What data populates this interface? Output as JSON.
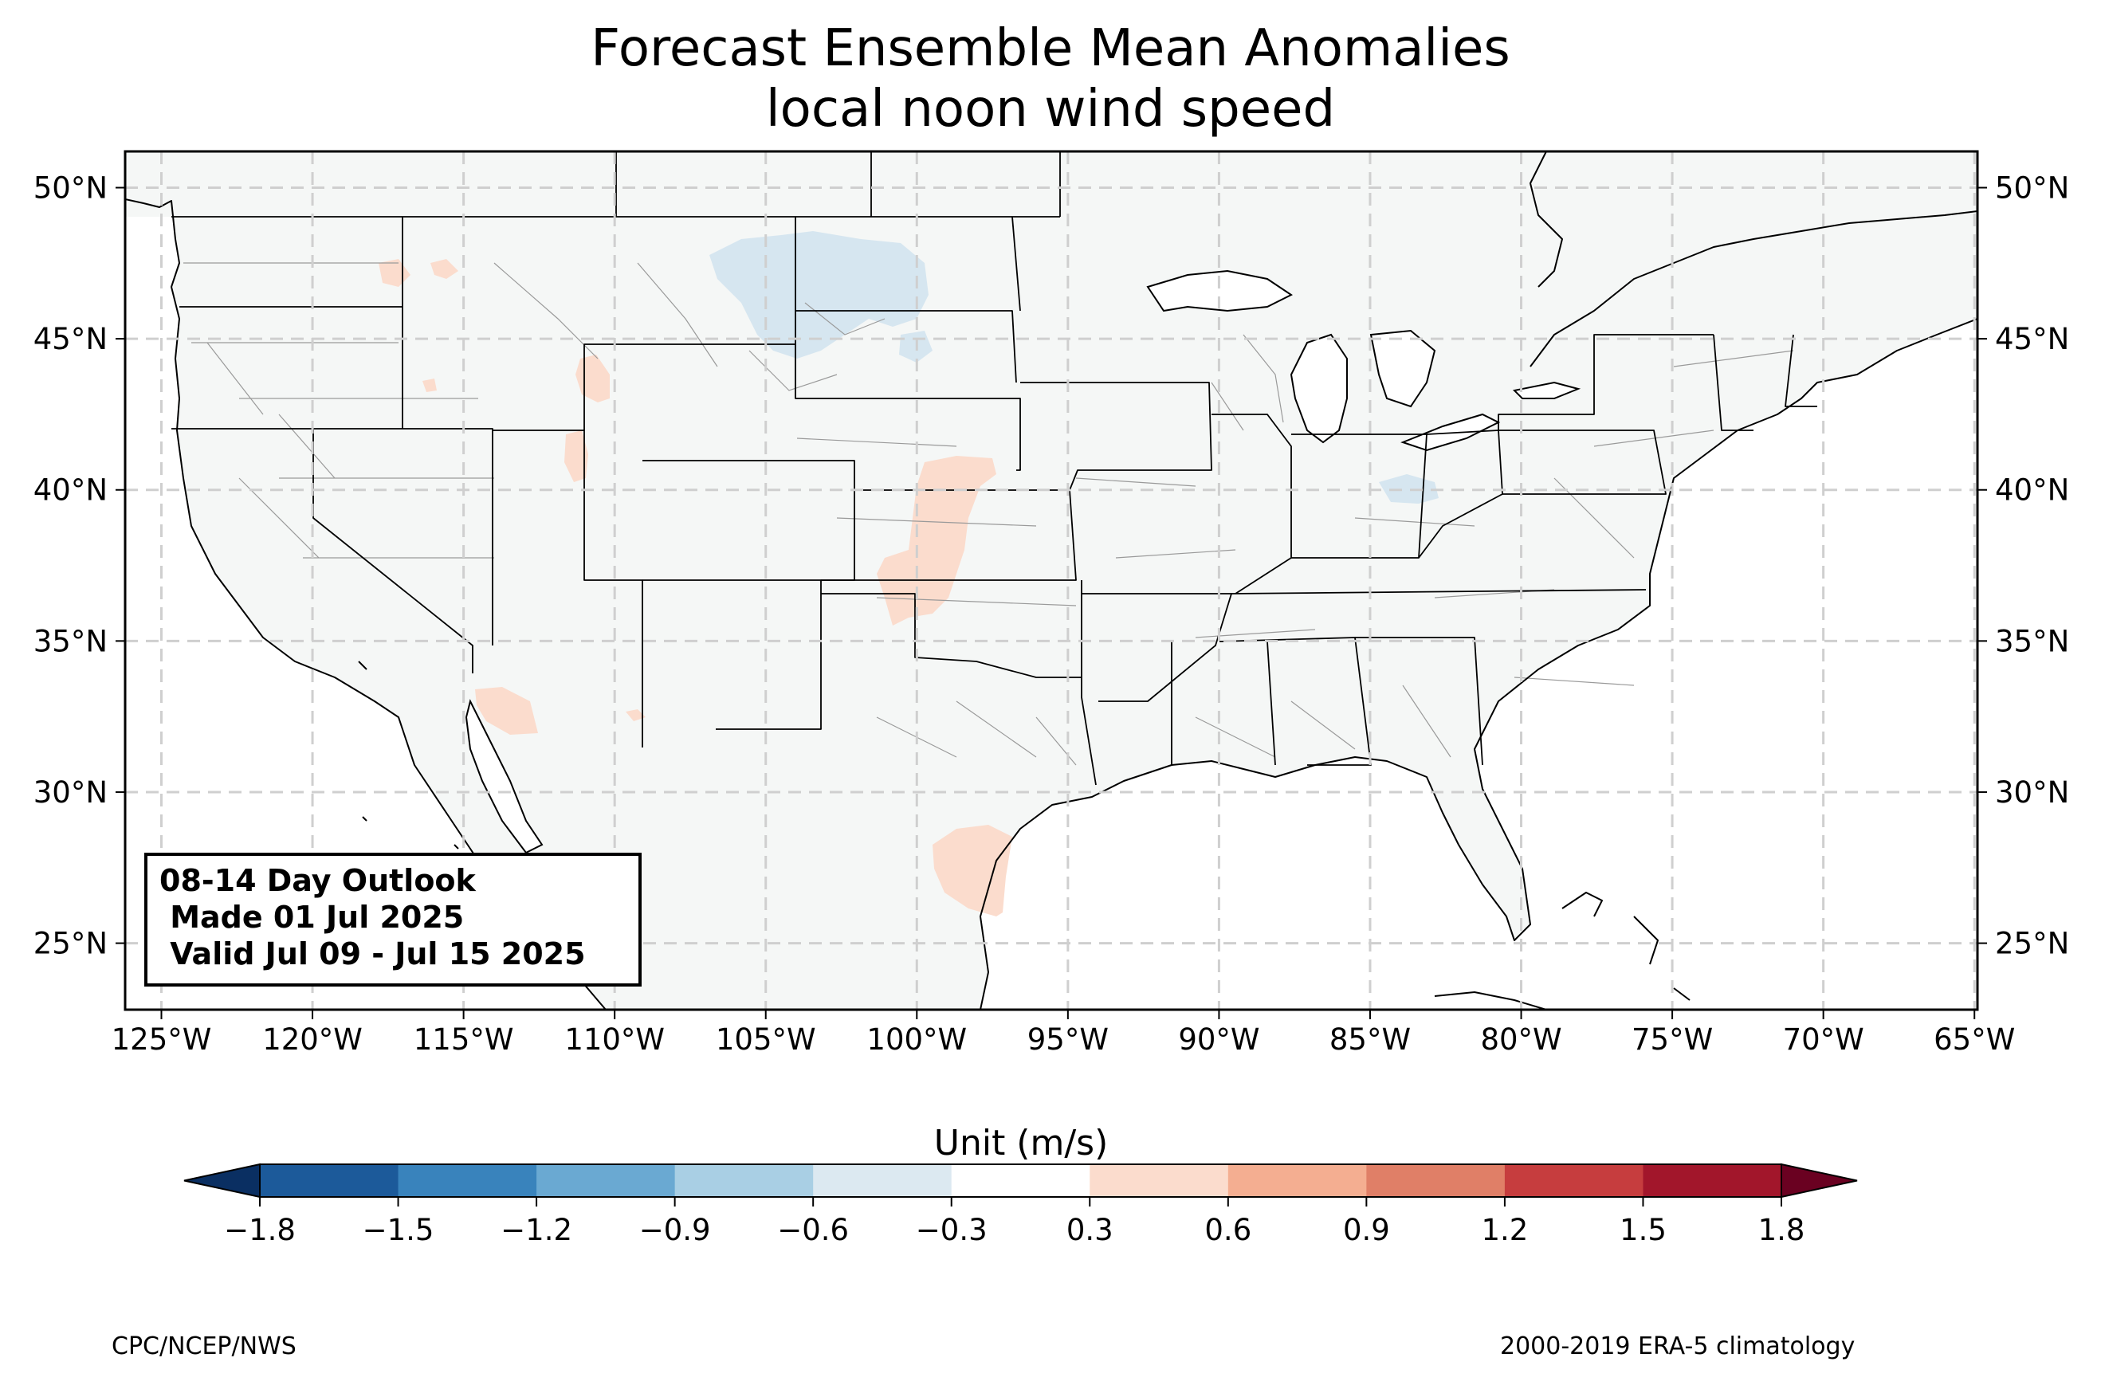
{
  "title": {
    "line1": "Forecast Ensemble Mean Anomalies",
    "line2": "local noon wind speed"
  },
  "info_box": {
    "line1": "08-14 Day Outlook",
    "line2": " Made 01 Jul 2025",
    "line3": " Valid Jul 09 - Jul 15 2025"
  },
  "footer": {
    "left": "CPC/NCEP/NWS",
    "right": "2000-2019 ERA-5 climatology"
  },
  "map": {
    "lon_range": [
      -126.2,
      -64.9
    ],
    "lat_range": [
      22.8,
      51.2
    ],
    "lon_ticks": [
      -125,
      -120,
      -115,
      -110,
      -105,
      -100,
      -95,
      -90,
      -85,
      -80,
      -75,
      -70,
      -65
    ],
    "lon_tick_labels": [
      "125°W",
      "120°W",
      "115°W",
      "110°W",
      "105°W",
      "100°W",
      "95°W",
      "90°W",
      "85°W",
      "80°W",
      "75°W",
      "70°W",
      "65°W"
    ],
    "lat_ticks": [
      25,
      30,
      35,
      40,
      45,
      50
    ],
    "lat_tick_labels": [
      "25°N",
      "30°N",
      "35°N",
      "40°N",
      "45°N",
      "50°N"
    ],
    "grid": true,
    "land_color": "#f5f7f6",
    "anomaly_regions": [
      {
        "region": "Montana-North Dakota border",
        "value_range": [
          -0.6,
          -0.3
        ],
        "color": "#d6e6f0"
      },
      {
        "region": "Ohio",
        "value_range": [
          -0.6,
          -0.3
        ],
        "color": "#d6e6f0"
      },
      {
        "region": "Kansas-Oklahoma (western)",
        "value_range": [
          0.3,
          0.6
        ],
        "color": "#fbdccd"
      },
      {
        "region": "South Texas",
        "value_range": [
          0.3,
          0.6
        ],
        "color": "#fbdccd"
      },
      {
        "region": "Southwest Arizona",
        "value_range": [
          0.3,
          0.6
        ],
        "color": "#fbdccd"
      },
      {
        "region": "Northern Idaho",
        "value_range": [
          0.3,
          0.6
        ],
        "color": "#fbdccd"
      },
      {
        "region": "Western Wyoming",
        "value_range": [
          0.3,
          0.6
        ],
        "color": "#fbdccd"
      },
      {
        "region": "Northeast Utah",
        "value_range": [
          0.3,
          0.6
        ],
        "color": "#fbdccd"
      }
    ]
  },
  "colorbar": {
    "label": "Unit (m/s)",
    "levels": [
      -1.8,
      -1.5,
      -1.2,
      -0.9,
      -0.6,
      -0.3,
      0.3,
      0.6,
      0.9,
      1.2,
      1.5,
      1.8
    ],
    "tick_labels": [
      "−1.8",
      "−1.5",
      "−1.2",
      "−0.9",
      "−0.6",
      "−0.3",
      "0.3",
      "0.6",
      "0.9",
      "1.2",
      "1.5",
      "1.8"
    ],
    "colors": [
      "#1c5a9a",
      "#3983bc",
      "#6aa9d2",
      "#a9cfe4",
      "#dce9f1",
      "#ffffff",
      "#fbdccd",
      "#f4ae91",
      "#e07f67",
      "#c63d3e",
      "#a2162b"
    ],
    "under_color": "#0a2f62",
    "over_color": "#6a0121"
  }
}
